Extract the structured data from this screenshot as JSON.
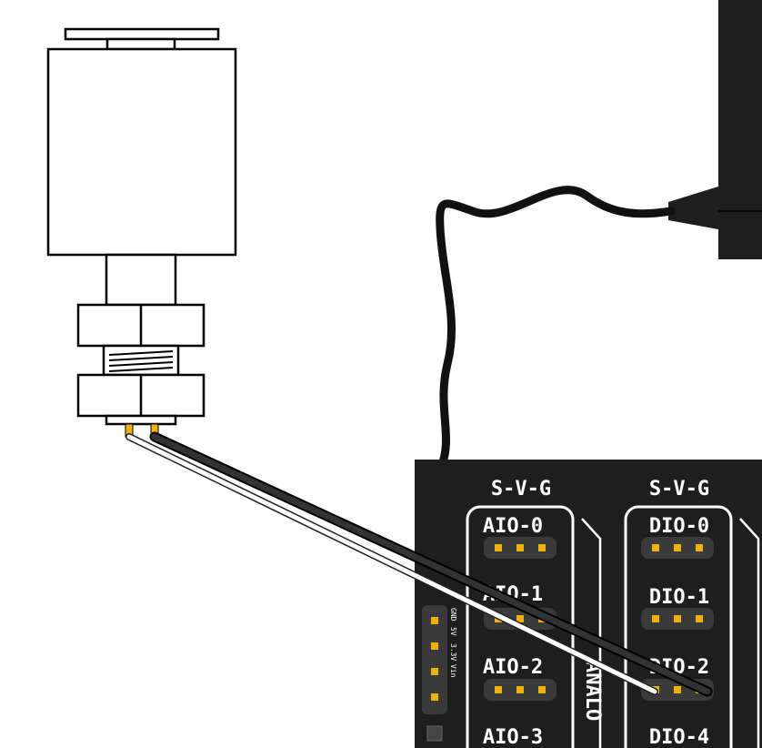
{
  "board": {
    "header_labels": [
      "S-V-G",
      "S-V-G"
    ],
    "analog_pins": [
      "AIO-0",
      "AIO-1",
      "AIO-2",
      "AIO-3"
    ],
    "digital_pins": [
      "DIO-0",
      "DIO-1",
      "DIO-2",
      "DIO-4"
    ],
    "section_label": "ANALO",
    "power_header_labels": [
      "GND",
      "5V",
      "3.3V",
      "Vin"
    ]
  },
  "colors": {
    "board": "#1e1e1e",
    "pin": "#f2b200",
    "wire_black": "#222222",
    "wire_white": "#ffffff",
    "outline": "#000000"
  }
}
